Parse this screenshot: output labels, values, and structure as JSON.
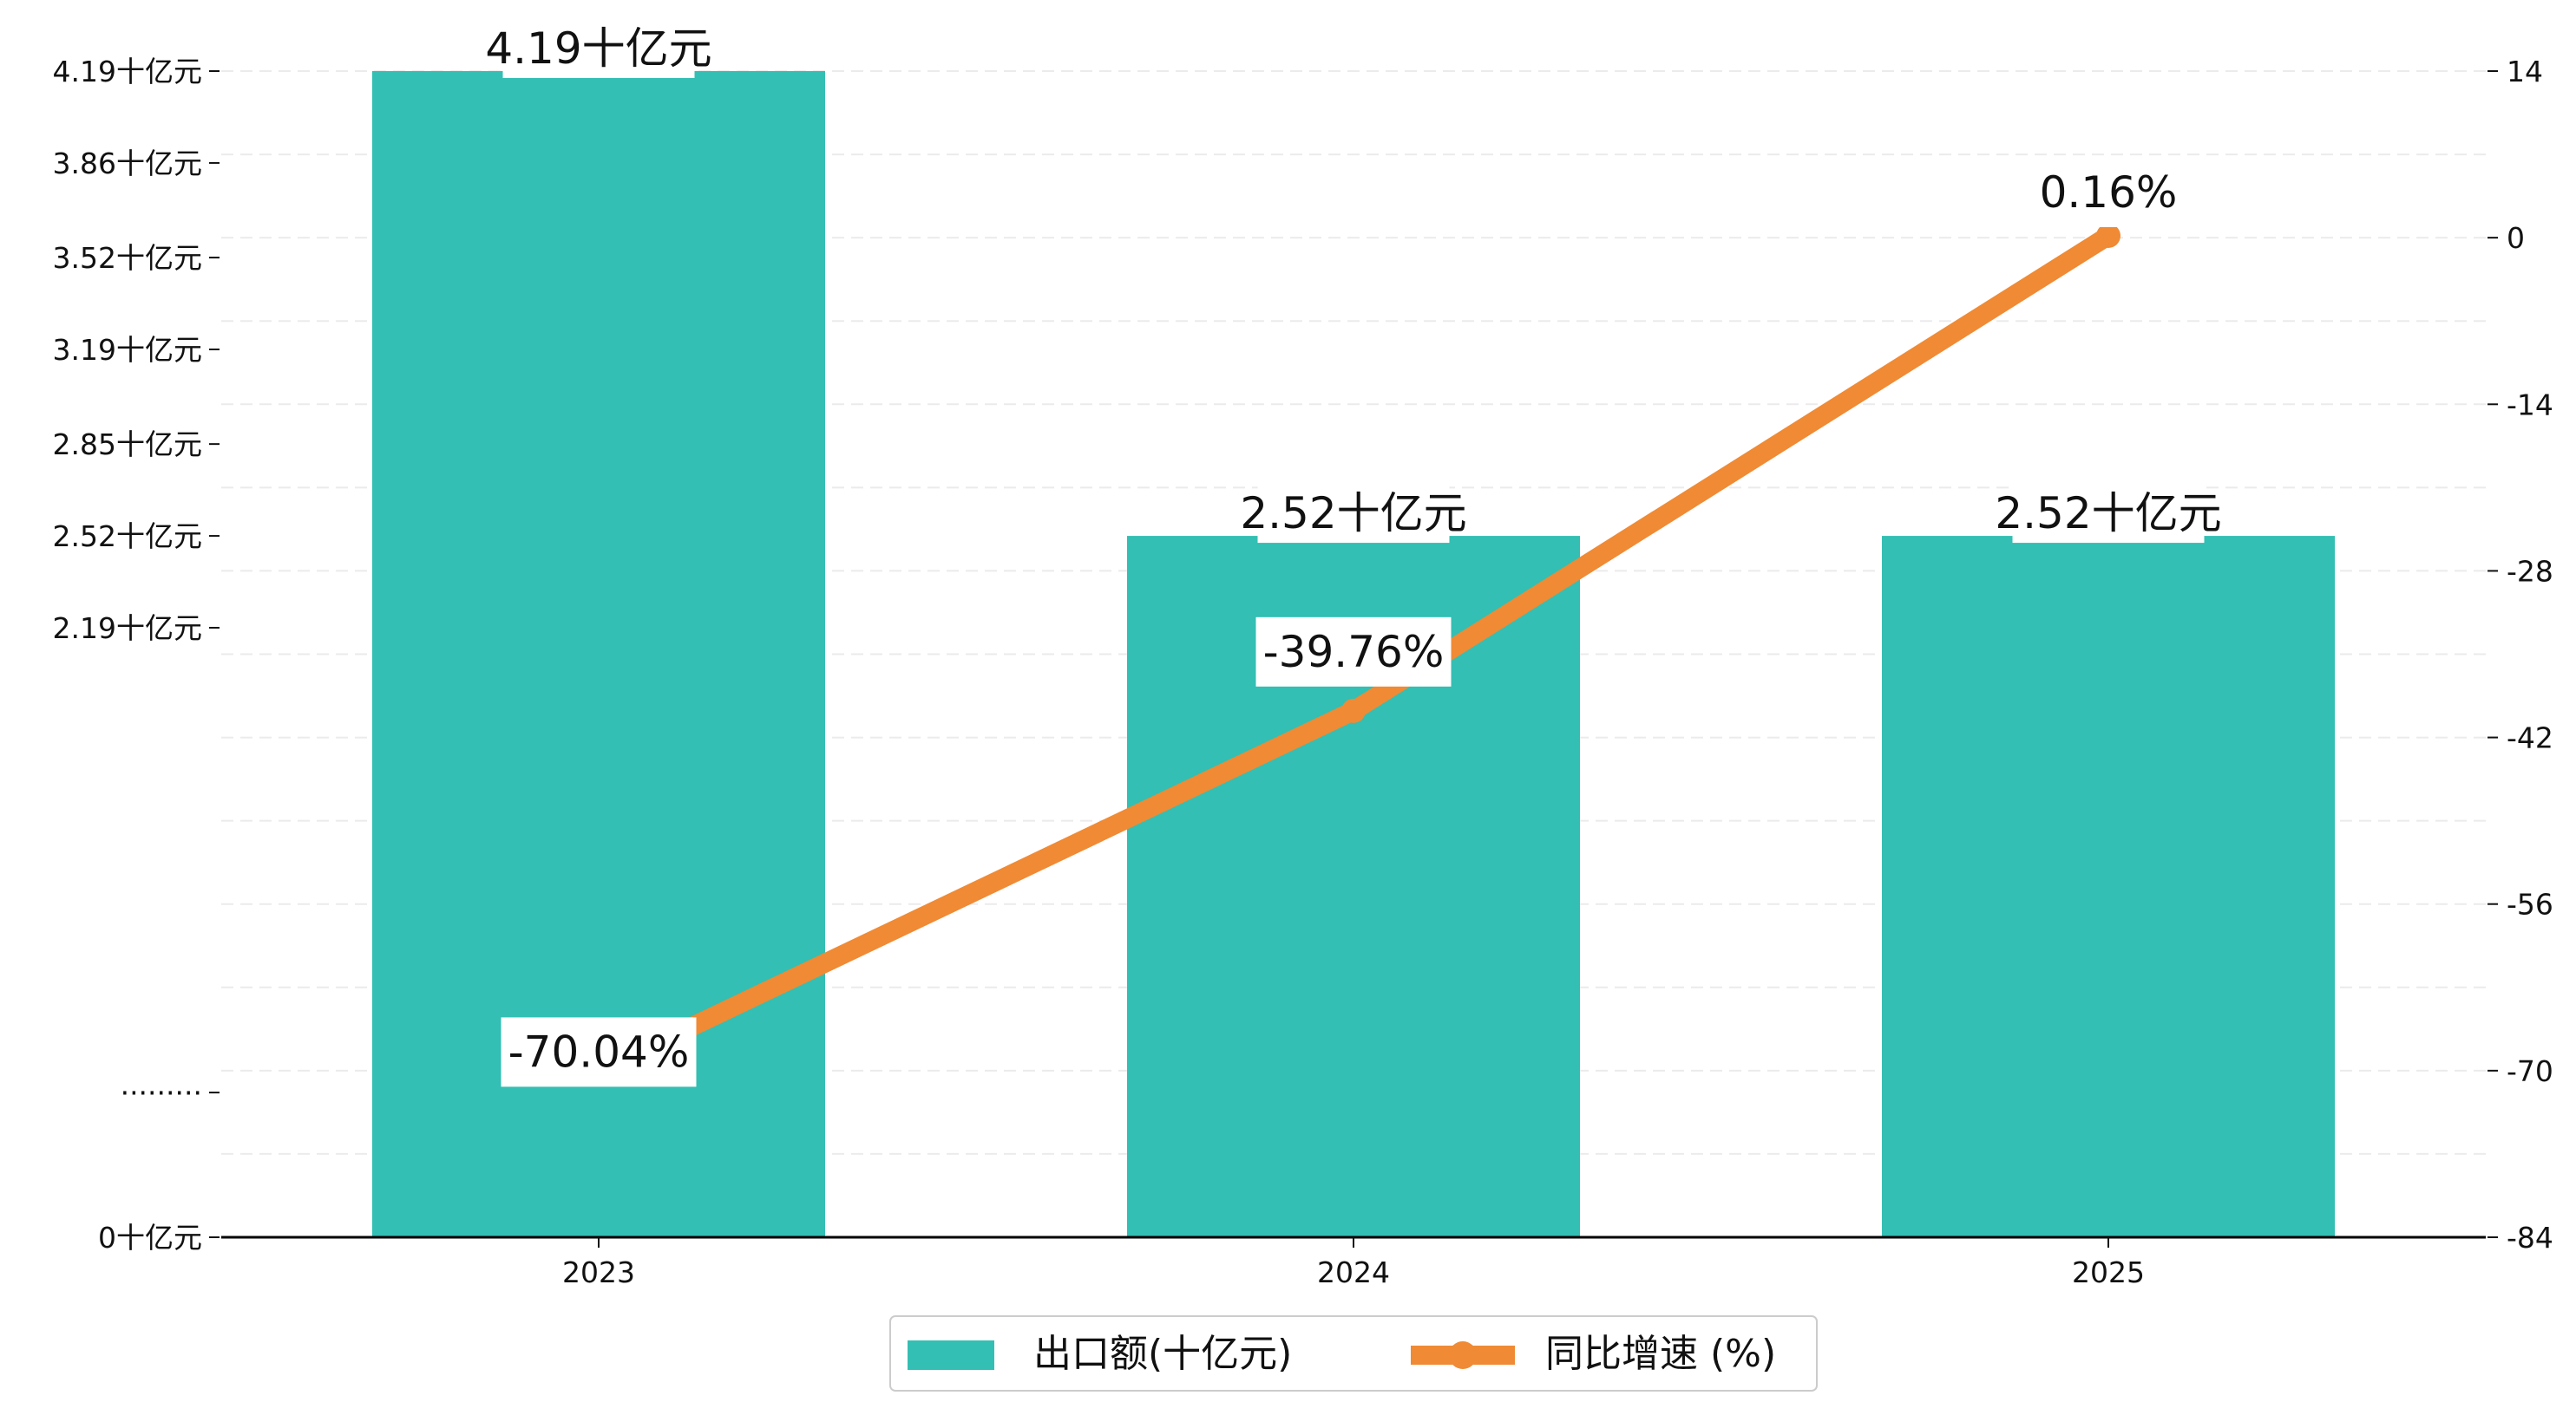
{
  "chart_data": {
    "type": "bar",
    "categories": [
      "2023",
      "2024",
      "2025"
    ],
    "series": [
      {
        "name": "出口额(十亿元)",
        "type": "bar",
        "axis": "left",
        "values": [
          4.19,
          2.52,
          2.52
        ],
        "labels": [
          "4.19十亿元",
          "2.52十亿元",
          "2.52十亿元"
        ]
      },
      {
        "name": "同比增速 (%)",
        "type": "line",
        "axis": "right",
        "values": [
          -70.04,
          -39.76,
          0.16
        ],
        "labels": [
          "-70.04%",
          "-39.76%",
          "0.16%"
        ]
      }
    ],
    "left_axis": {
      "ylim": [
        0,
        4.19
      ],
      "tick_values": [
        0,
        0.52,
        2.19,
        2.52,
        2.85,
        3.19,
        3.52,
        3.86,
        4.19
      ],
      "tick_labels": [
        "0十亿元",
        "·········",
        "2.19十亿元",
        "2.52十亿元",
        "2.85十亿元",
        "3.19十亿元",
        "3.52十亿元",
        "3.86十亿元",
        "4.19十亿元"
      ]
    },
    "right_axis": {
      "ylim": [
        -84,
        14
      ],
      "tick_values": [
        -84,
        -70,
        -56,
        -42,
        -28,
        -14,
        0,
        14
      ],
      "tick_labels": [
        "-84",
        "-70",
        "-56",
        "-42",
        "-28",
        "-14",
        "0",
        "14"
      ]
    },
    "grid": true,
    "legend_position": "bottom-center",
    "colors": {
      "bar": "#33BFB3",
      "line": "#F08A34"
    }
  }
}
